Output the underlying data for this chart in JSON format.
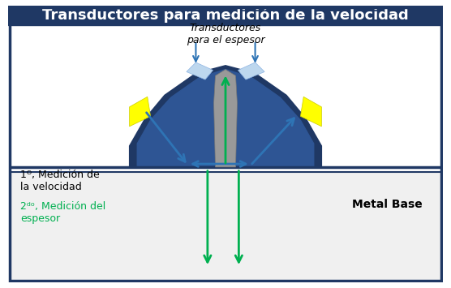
{
  "title": "Transductores para medición de la velocidad",
  "title_fontsize": 13,
  "title_color": "#FFFFFF",
  "title_bg_color": "#1F3864",
  "bg_color": "#FFFFFF",
  "border_color": "#1F3864",
  "text_transductores": "Transductores\npara el espesor",
  "text_1ro": "1ᴼ, Medición de\nla velocidad",
  "text_2do": "2ᵈᵒ, Medición del\nespesor",
  "text_metal": "Metal Base",
  "dark_blue": "#1F3864",
  "medium_blue": "#2E5594",
  "light_blue": "#BDD7EE",
  "yellow": "#FFFF00",
  "gray": "#808080",
  "green_color": "#00B050",
  "arrow_blue": "#2E74B5",
  "separator_line": "#1F3864"
}
